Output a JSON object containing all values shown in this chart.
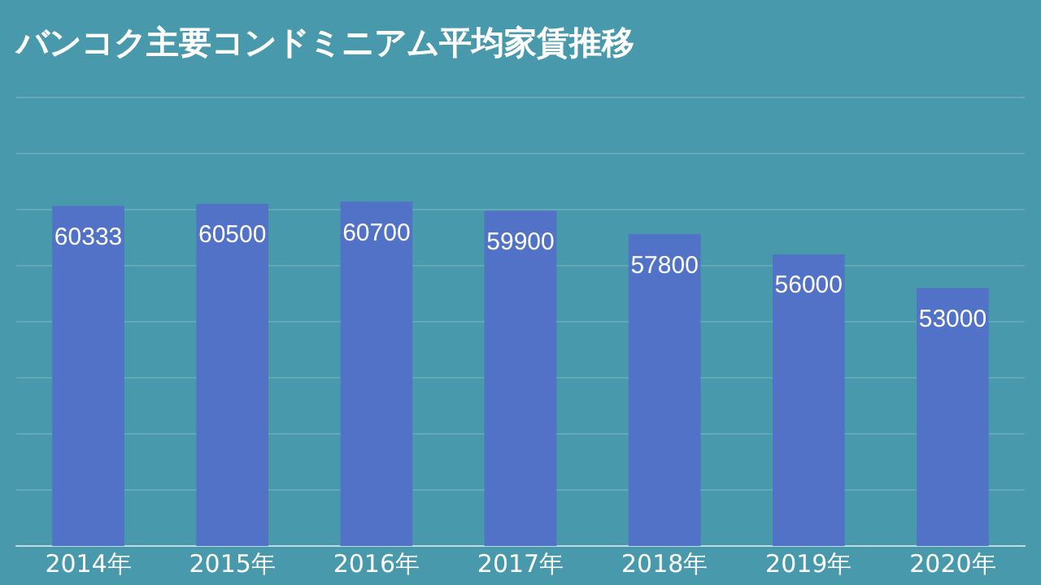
{
  "chart_data": {
    "type": "bar",
    "title": "バンコク主要コンドミニアム平均家賃推移",
    "categories": [
      "2014年",
      "2015年",
      "2016年",
      "2017年",
      "2018年",
      "2019年",
      "2020年"
    ],
    "values": [
      60333,
      60500,
      60700,
      59900,
      57800,
      56000,
      53000
    ],
    "color": "#5172c6",
    "ylim": [
      30000,
      70000
    ],
    "yticks": [
      {
        "value": 30000,
        "label": null
      },
      {
        "value": 35000,
        "label": null
      },
      {
        "value": 40000,
        "label": null
      },
      {
        "value": 45000,
        "label": null
      },
      {
        "value": 50000,
        "label": null
      },
      {
        "value": 55000,
        "label": null
      },
      {
        "value": 60000,
        "label": null
      },
      {
        "value": 65000,
        "label": null
      },
      {
        "value": 70000,
        "label": null
      }
    ],
    "tick_labels": "x",
    "grid": "y",
    "data_labels": true,
    "legend": false
  }
}
